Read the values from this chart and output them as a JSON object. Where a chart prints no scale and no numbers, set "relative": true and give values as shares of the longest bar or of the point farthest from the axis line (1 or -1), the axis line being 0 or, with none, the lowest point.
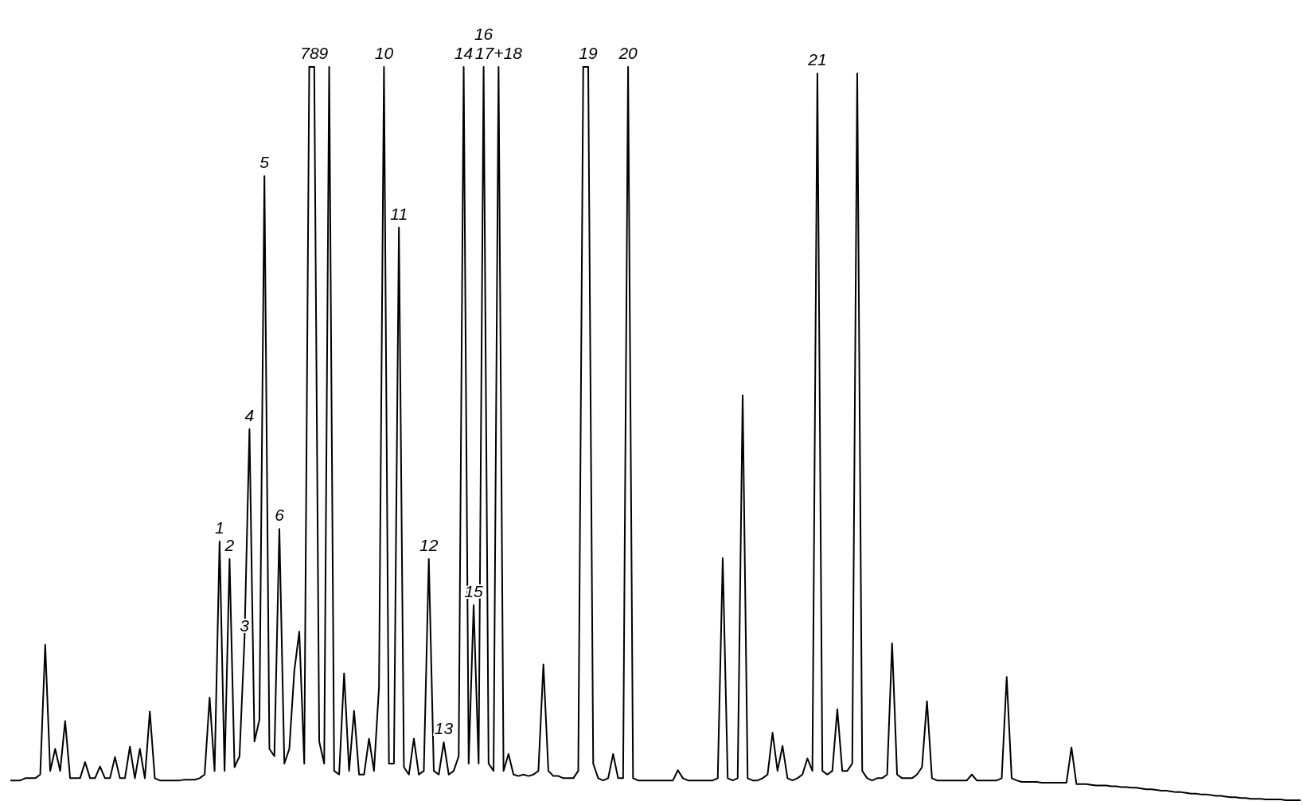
{
  "chart_data": {
    "type": "line",
    "relative": true,
    "categories": [
      null,
      null,
      null,
      null,
      null,
      null,
      null,
      null,
      null,
      null,
      null,
      null,
      null,
      null,
      null,
      null,
      null,
      null,
      null,
      null,
      null,
      null,
      null,
      null,
      null,
      null,
      null,
      null,
      null,
      null,
      null,
      null,
      null,
      null,
      null,
      null,
      null,
      null,
      null,
      null,
      null,
      null,
      "1",
      null,
      "2",
      null,
      null,
      "3",
      "4",
      null,
      null,
      "5",
      null,
      null,
      "6",
      null,
      null,
      null,
      null,
      null,
      null,
      "789",
      null,
      null,
      null,
      null,
      null,
      null,
      null,
      null,
      null,
      null,
      null,
      null,
      null,
      "10",
      null,
      null,
      "11",
      null,
      null,
      null,
      null,
      null,
      "12",
      null,
      null,
      "13",
      null,
      null,
      null,
      "14",
      null,
      "15",
      null,
      "16",
      null,
      null,
      "17+18",
      null,
      null,
      null,
      null,
      null,
      null,
      null,
      null,
      null,
      null,
      null,
      null,
      null,
      null,
      null,
      null,
      null,
      "19",
      null,
      null,
      null,
      null,
      null,
      null,
      null,
      "20",
      null,
      null,
      null,
      null,
      null,
      null,
      null,
      null,
      null,
      null,
      null,
      null,
      null,
      null,
      null,
      null,
      null,
      null,
      null,
      null,
      null,
      null,
      null,
      null,
      null,
      null,
      null,
      null,
      null,
      null,
      null,
      null,
      null,
      null,
      null,
      null,
      null,
      "21",
      null,
      null,
      null,
      null,
      null,
      null,
      null,
      null,
      null,
      null,
      null,
      null,
      null,
      null,
      null,
      null,
      null,
      null,
      null,
      null,
      null,
      null,
      null,
      null,
      null,
      null,
      null,
      null,
      null,
      null,
      null,
      null,
      null,
      null,
      null,
      null,
      null,
      null,
      null,
      null,
      null,
      null,
      null,
      null,
      null,
      null,
      null,
      null,
      null,
      null,
      null,
      null,
      null,
      null,
      null,
      null,
      null,
      null,
      null,
      null,
      null,
      null,
      null,
      null,
      null,
      null,
      null,
      null,
      null,
      null,
      null,
      null,
      null,
      null,
      null,
      null,
      null,
      null,
      null,
      null,
      null,
      null,
      null,
      null,
      null,
      null,
      null,
      null,
      null,
      null,
      null,
      null,
      null,
      null,
      null,
      null,
      null
    ],
    "series": [
      {
        "color": "#000000",
        "values": [
          0.027,
          0.027,
          0.027,
          0.03,
          0.03,
          0.03,
          0.035,
          0.212,
          0.04,
          0.07,
          0.04,
          0.108,
          0.03,
          0.03,
          0.03,
          0.052,
          0.03,
          0.03,
          0.046,
          0.03,
          0.03,
          0.059,
          0.03,
          0.03,
          0.073,
          0.03,
          0.07,
          0.03,
          0.121,
          0.03,
          0.027,
          0.027,
          0.027,
          0.027,
          0.027,
          0.028,
          0.028,
          0.028,
          0.03,
          0.035,
          0.14,
          0.04,
          0.353,
          0.04,
          0.329,
          0.045,
          0.06,
          0.219,
          0.506,
          0.08,
          0.11,
          0.851,
          0.07,
          0.06,
          0.37,
          0.05,
          0.07,
          0.176,
          0.23,
          0.05,
          1,
          1,
          0.08,
          0.05,
          1,
          0.04,
          0.035,
          0.173,
          0.04,
          0.122,
          0.035,
          0.035,
          0.084,
          0.04,
          0.154,
          1,
          0.05,
          0.05,
          0.781,
          0.045,
          0.035,
          0.084,
          0.035,
          0.04,
          0.329,
          0.04,
          0.035,
          0.079,
          0.035,
          0.04,
          0.06,
          1,
          0.05,
          0.266,
          0.05,
          1,
          0.05,
          0.04,
          1,
          0.04,
          0.063,
          0.035,
          0.033,
          0.035,
          0.033,
          0.035,
          0.04,
          0.185,
          0.04,
          0.033,
          0.033,
          0.03,
          0.03,
          0.03,
          0.04,
          1,
          1,
          0.05,
          0.03,
          0.027,
          0.03,
          0.063,
          0.03,
          0.03,
          1,
          0.03,
          0.027,
          0.027,
          0.027,
          0.027,
          0.027,
          0.027,
          0.027,
          0.027,
          0.041,
          0.03,
          0.027,
          0.027,
          0.027,
          0.027,
          0.027,
          0.027,
          0.03,
          0.33,
          0.03,
          0.027,
          0.03,
          0.552,
          0.03,
          0.027,
          0.027,
          0.03,
          0.035,
          0.092,
          0.04,
          0.074,
          0.03,
          0.027,
          0.03,
          0.035,
          0.057,
          0.04,
          0.991,
          0.04,
          0.035,
          0.04,
          0.124,
          0.04,
          0.04,
          0.05,
          0.991,
          0.04,
          0.03,
          0.027,
          0.03,
          0.03,
          0.035,
          0.214,
          0.035,
          0.03,
          0.03,
          0.03,
          0.035,
          0.045,
          0.135,
          0.03,
          0.027,
          0.027,
          0.027,
          0.027,
          0.027,
          0.027,
          0.027,
          0.035,
          0.027,
          0.027,
          0.027,
          0.027,
          0.027,
          0.03,
          0.168,
          0.03,
          0.027,
          0.025,
          0.025,
          0.025,
          0.025,
          0.024,
          0.024,
          0.024,
          0.024,
          0.024,
          0.024,
          0.072,
          0.022,
          0.022,
          0.022,
          0.021,
          0.02,
          0.02,
          0.02,
          0.019,
          0.019,
          0.018,
          0.018,
          0.017,
          0.017,
          0.016,
          0.015,
          0.015,
          0.014,
          0.013,
          0.013,
          0.012,
          0.011,
          0.011,
          0.01,
          0.009,
          0.009,
          0.008,
          0.008,
          0.007,
          0.006,
          0.006,
          0.005,
          0.004,
          0.004,
          0.003,
          0.003,
          0.002,
          0.002,
          0.002,
          0.001,
          0.001,
          0.001,
          0.001,
          0,
          0,
          0,
          0
        ]
      }
    ]
  }
}
